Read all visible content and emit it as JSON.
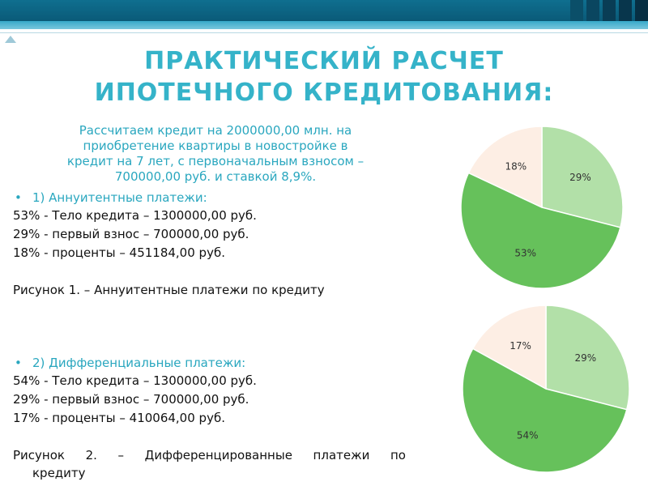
{
  "title": {
    "line1": "ПРАКТИЧЕСКИЙ РАСЧЕТ",
    "line2": "ИПОТЕЧНОГО КРЕДИТОВАНИЯ:"
  },
  "intro": {
    "line1": "Рассчитаем кредит на 2000000,00 млн. на",
    "line2": "приобретение квартиры в новостройке в",
    "line3": "кредит на 7 лет, с первоначальным взносом –",
    "line4": "700000,00 руб. и ставкой 8,9%."
  },
  "annuity": {
    "heading": "1) Аннуитентные платежи:",
    "items": [
      "53% - Тело кредита – 1300000,00 руб.",
      "29% - первый взнос – 700000,00 руб.",
      "18% - проценты – 451184,00 руб."
    ],
    "caption": "Рисунок 1. – Аннуитентные платежи по кредиту"
  },
  "differential": {
    "heading": "2) Дифференциальные платежи:",
    "items": [
      "54% - Тело кредита – 1300000,00 руб.",
      "29% - первый взнос – 700000,00 руб.",
      "17% - проценты – 410064,00 руб."
    ],
    "caption_line1": "Рисунок 2. – Дифференцированные платежи по",
    "caption_line2": "кредиту"
  },
  "bullet_glyph": "•",
  "colors": {
    "title": "#35b3c9",
    "accent_text": "#2aa7bf",
    "slice_body": "#66c15b",
    "slice_down": "#b2e0a8",
    "slice_interest": "#fdeee4"
  },
  "chart_data": [
    {
      "type": "pie",
      "slices": [
        {
          "label": "29%",
          "value": 29,
          "color": "#b2e0a8"
        },
        {
          "label": "53%",
          "value": 53,
          "color": "#66c15b"
        },
        {
          "label": "18%",
          "value": 18,
          "color": "#fdeee4"
        }
      ]
    },
    {
      "type": "pie",
      "slices": [
        {
          "label": "29%",
          "value": 29,
          "color": "#b2e0a8"
        },
        {
          "label": "54%",
          "value": 54,
          "color": "#66c15b"
        },
        {
          "label": "17%",
          "value": 17,
          "color": "#fdeee4"
        }
      ]
    }
  ]
}
